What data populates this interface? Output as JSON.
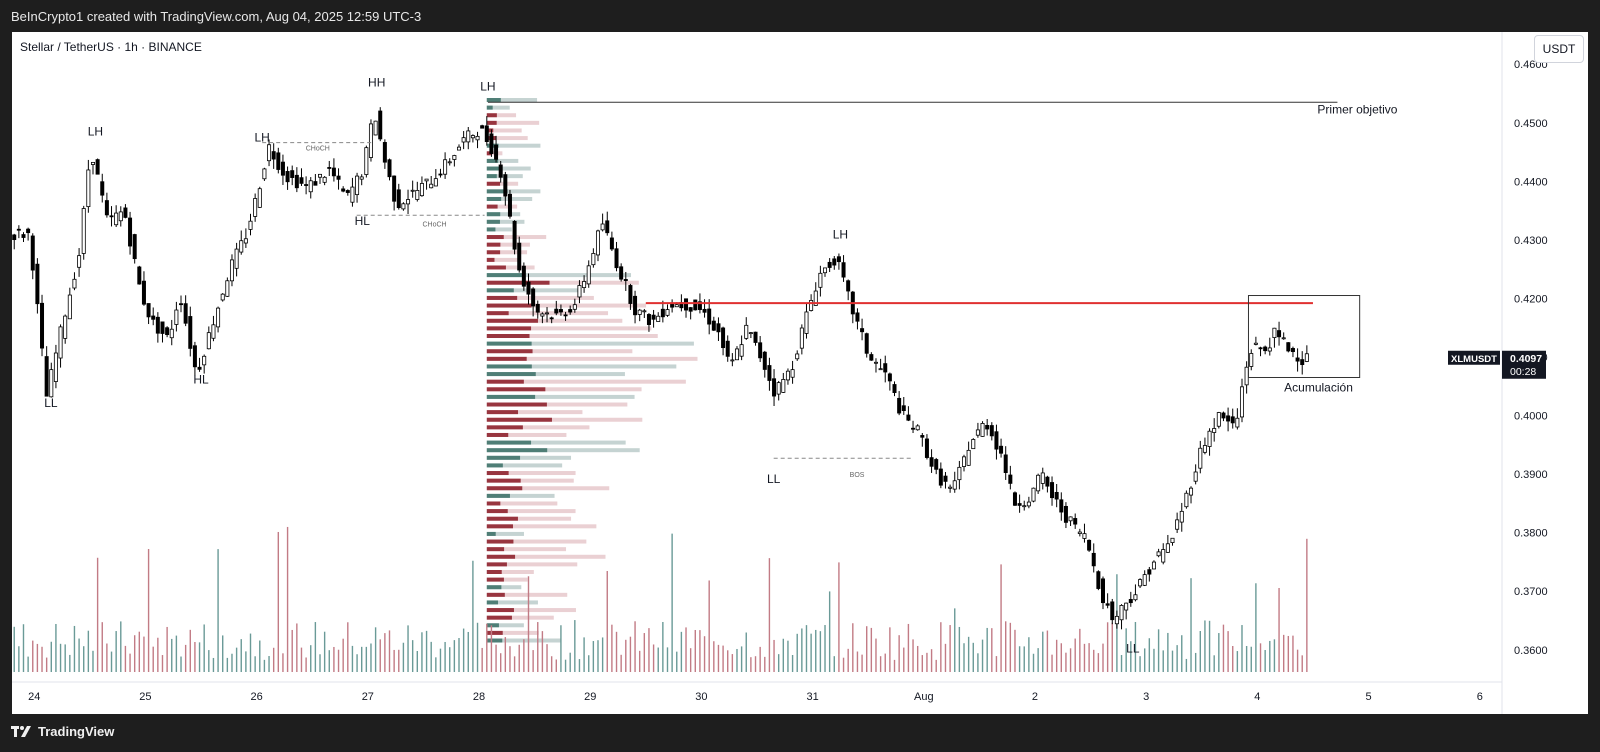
{
  "header": {
    "caption": "BeInCrypto1 created with TradingView.com, Aug 04, 2025 12:59 UTC-3"
  },
  "chart_header": {
    "symbol_title": "Stellar / TetherUS · 1h · BINANCE",
    "currency_button": "USDT"
  },
  "price_tag": {
    "symbol": "XLMUSDT",
    "price": "0.4097",
    "countdown": "00:28"
  },
  "footer": {
    "logo_text": "TradingView"
  },
  "colors": {
    "up_candle": "#ffffff",
    "down_candle": "#000000",
    "volume_up": "#6a9a97",
    "volume_down": "#c27b85",
    "profile_up": "#3a6e66",
    "profile_down": "#8a1a25",
    "resistance_line": "#e03030"
  },
  "chart_data": {
    "type": "candlestick",
    "title": "Stellar / TetherUS · 1h · BINANCE",
    "xlabel": "",
    "ylabel": "",
    "ylim": [
      0.3545,
      0.4655
    ],
    "ytick_values": [
      0.36,
      0.37,
      0.38,
      0.39,
      0.4,
      0.41,
      0.42,
      0.43,
      0.44,
      0.45,
      0.46
    ],
    "ytick_labels": [
      "0.3600",
      "0.3700",
      "0.3800",
      "0.3900",
      "0.4000",
      "0.4100",
      "0.4200",
      "0.4300",
      "0.4400",
      "0.4500",
      "0.4600"
    ],
    "xlim_days": [
      23.8,
      37.2
    ],
    "xticks": [
      {
        "day": 24,
        "label": "24"
      },
      {
        "day": 25,
        "label": "25"
      },
      {
        "day": 26,
        "label": "26"
      },
      {
        "day": 27,
        "label": "27"
      },
      {
        "day": 28,
        "label": "28"
      },
      {
        "day": 29,
        "label": "29"
      },
      {
        "day": 30,
        "label": "30"
      },
      {
        "day": 31,
        "label": "31"
      },
      {
        "day": 32,
        "label": "Aug"
      },
      {
        "day": 33,
        "label": "2"
      },
      {
        "day": 34,
        "label": "3"
      },
      {
        "day": 35,
        "label": "4"
      },
      {
        "day": 36,
        "label": "5"
      },
      {
        "day": 37,
        "label": "6"
      }
    ],
    "price_path": [
      [
        24.0,
        0.431
      ],
      [
        24.1,
        0.413
      ],
      [
        24.15,
        0.403
      ],
      [
        24.3,
        0.416
      ],
      [
        24.45,
        0.428
      ],
      [
        24.55,
        0.446
      ],
      [
        24.7,
        0.433
      ],
      [
        24.85,
        0.435
      ],
      [
        25.0,
        0.421
      ],
      [
        25.1,
        0.416
      ],
      [
        25.25,
        0.413
      ],
      [
        25.35,
        0.421
      ],
      [
        25.5,
        0.407
      ],
      [
        25.6,
        0.413
      ],
      [
        25.8,
        0.425
      ],
      [
        25.95,
        0.431
      ],
      [
        26.05,
        0.438
      ],
      [
        26.15,
        0.446
      ],
      [
        26.3,
        0.441
      ],
      [
        26.5,
        0.439
      ],
      [
        26.7,
        0.442
      ],
      [
        26.85,
        0.437
      ],
      [
        27.0,
        0.442
      ],
      [
        27.1,
        0.452
      ],
      [
        27.2,
        0.443
      ],
      [
        27.3,
        0.436
      ],
      [
        27.45,
        0.438
      ],
      [
        27.6,
        0.44
      ],
      [
        27.75,
        0.443
      ],
      [
        27.9,
        0.447
      ],
      [
        28.05,
        0.449
      ],
      [
        28.15,
        0.446
      ],
      [
        28.25,
        0.441
      ],
      [
        28.4,
        0.425
      ],
      [
        28.55,
        0.418
      ],
      [
        28.75,
        0.417
      ],
      [
        28.9,
        0.419
      ],
      [
        29.0,
        0.424
      ],
      [
        29.15,
        0.433
      ],
      [
        29.3,
        0.425
      ],
      [
        29.45,
        0.418
      ],
      [
        29.6,
        0.416
      ],
      [
        29.75,
        0.419
      ],
      [
        29.9,
        0.419
      ],
      [
        30.05,
        0.418
      ],
      [
        30.2,
        0.414
      ],
      [
        30.3,
        0.408
      ],
      [
        30.45,
        0.415
      ],
      [
        30.6,
        0.409
      ],
      [
        30.7,
        0.404
      ],
      [
        30.85,
        0.408
      ],
      [
        31.0,
        0.418
      ],
      [
        31.1,
        0.424
      ],
      [
        31.25,
        0.427
      ],
      [
        31.4,
        0.418
      ],
      [
        31.55,
        0.41
      ],
      [
        31.7,
        0.407
      ],
      [
        31.85,
        0.4
      ],
      [
        32.0,
        0.397
      ],
      [
        32.15,
        0.39
      ],
      [
        32.3,
        0.387
      ],
      [
        32.45,
        0.395
      ],
      [
        32.6,
        0.399
      ],
      [
        32.75,
        0.393
      ],
      [
        32.85,
        0.385
      ],
      [
        33.0,
        0.386
      ],
      [
        33.1,
        0.39
      ],
      [
        33.2,
        0.386
      ],
      [
        33.35,
        0.382
      ],
      [
        33.5,
        0.379
      ],
      [
        33.65,
        0.369
      ],
      [
        33.75,
        0.365
      ],
      [
        33.85,
        0.368
      ],
      [
        33.95,
        0.37
      ],
      [
        34.1,
        0.375
      ],
      [
        34.25,
        0.378
      ],
      [
        34.4,
        0.386
      ],
      [
        34.55,
        0.395
      ],
      [
        34.7,
        0.4
      ],
      [
        34.85,
        0.398
      ],
      [
        34.92,
        0.407
      ],
      [
        35.0,
        0.412
      ],
      [
        35.1,
        0.411
      ],
      [
        35.2,
        0.414
      ],
      [
        35.35,
        0.411
      ],
      [
        35.45,
        0.4097
      ]
    ],
    "annotations": [
      {
        "label": "LL",
        "day": 24.15,
        "price": 0.4015
      },
      {
        "label": "LH",
        "day": 24.55,
        "price": 0.4478
      },
      {
        "label": "HL",
        "day": 25.5,
        "price": 0.4055
      },
      {
        "label": "LH",
        "day": 26.05,
        "price": 0.4468
      },
      {
        "label": "CHoCH",
        "day": 26.55,
        "price": 0.4453
      },
      {
        "label": "HH",
        "day": 27.08,
        "price": 0.4562
      },
      {
        "label": "HL",
        "day": 26.95,
        "price": 0.4325
      },
      {
        "label": "CHoCH",
        "day": 27.6,
        "price": 0.4323
      },
      {
        "label": "LH",
        "day": 28.08,
        "price": 0.4555
      },
      {
        "label": "LH",
        "day": 31.25,
        "price": 0.4302
      },
      {
        "label": "LL",
        "day": 30.65,
        "price": 0.3885
      },
      {
        "label": "BOS",
        "day": 31.4,
        "price": 0.3895
      },
      {
        "label": "LL",
        "day": 33.88,
        "price": 0.3595
      },
      {
        "label": "Primer objetivo",
        "day": 35.9,
        "price": 0.4516
      },
      {
        "label": "Acumulación",
        "day": 35.55,
        "price": 0.4041
      }
    ],
    "levels": {
      "primer_objetivo": 0.4535,
      "resistance": 0.4192,
      "accumulation_box": {
        "day_start": 34.92,
        "day_end": 35.92,
        "price_high": 0.4205,
        "price_low": 0.4065
      }
    }
  }
}
